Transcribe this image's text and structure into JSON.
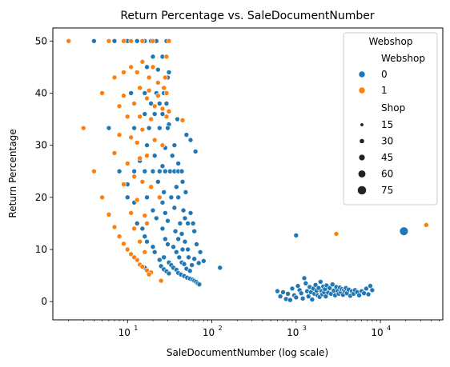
{
  "chart_data": {
    "type": "scatter",
    "title": "Return Percentage vs. SaleDocumentNumber",
    "xlabel": "SaleDocumentNumber (log scale)",
    "ylabel": "Return Percentage",
    "x_scale": "log",
    "xlim": [
      1.3,
      55000
    ],
    "ylim": [
      -3.5,
      52.5
    ],
    "x_ticks": [
      {
        "value": 10,
        "base": "10",
        "exp": "1"
      },
      {
        "value": 100,
        "base": "10",
        "exp": "2"
      },
      {
        "value": 1000,
        "base": "10",
        "exp": "3"
      },
      {
        "value": 10000,
        "base": "10",
        "exp": "4"
      }
    ],
    "y_ticks": [
      0,
      10,
      20,
      30,
      40,
      50
    ],
    "grid": false,
    "legend": {
      "placement": "top-right",
      "title": "Webshop",
      "hue_header": "Webshop",
      "size_header": "Shop",
      "hue_entries": [
        {
          "label": "0",
          "color": "#1f77b4"
        },
        {
          "label": "1",
          "color": "#ff7f0e"
        }
      ],
      "size_entries": [
        {
          "label": "15",
          "size": 15
        },
        {
          "label": "30",
          "size": 30
        },
        {
          "label": "45",
          "size": 45
        },
        {
          "label": "60",
          "size": 60
        },
        {
          "label": "75",
          "size": 75
        }
      ]
    },
    "series": [
      {
        "hue": "0",
        "color": "#1f77b4",
        "points": [
          [
            4,
            50
          ],
          [
            7,
            50
          ],
          [
            10,
            50
          ],
          [
            13,
            50
          ],
          [
            16,
            50
          ],
          [
            19,
            50
          ],
          [
            22,
            50
          ],
          [
            29,
            50
          ],
          [
            20,
            47
          ],
          [
            26,
            47
          ],
          [
            17,
            45
          ],
          [
            23,
            44.5
          ],
          [
            30,
            43
          ],
          [
            31,
            44
          ],
          [
            11,
            40
          ],
          [
            16,
            40
          ],
          [
            22,
            40
          ],
          [
            27,
            40
          ],
          [
            19,
            38
          ],
          [
            24,
            38
          ],
          [
            29,
            38
          ],
          [
            16,
            36
          ],
          [
            21,
            36
          ],
          [
            26,
            36
          ],
          [
            39,
            35
          ],
          [
            31,
            34
          ],
          [
            6,
            33.3
          ],
          [
            12,
            33.3
          ],
          [
            18,
            33.3
          ],
          [
            24,
            33.3
          ],
          [
            30,
            33.3
          ],
          [
            50,
            32
          ],
          [
            56,
            31
          ],
          [
            36,
            30
          ],
          [
            17,
            30
          ],
          [
            28,
            29.5
          ],
          [
            64,
            28.8
          ],
          [
            21,
            28
          ],
          [
            34,
            28
          ],
          [
            14,
            27
          ],
          [
            26,
            26
          ],
          [
            40,
            26.5
          ],
          [
            8,
            25
          ],
          [
            12,
            25
          ],
          [
            16,
            25
          ],
          [
            20,
            25
          ],
          [
            24,
            25
          ],
          [
            28,
            25
          ],
          [
            32,
            25
          ],
          [
            36,
            25
          ],
          [
            40,
            25
          ],
          [
            44,
            25
          ],
          [
            23,
            23
          ],
          [
            45,
            23
          ],
          [
            10,
            22.5
          ],
          [
            19,
            22
          ],
          [
            38,
            22
          ],
          [
            27,
            21
          ],
          [
            10,
            20
          ],
          [
            17,
            20
          ],
          [
            33,
            20
          ],
          [
            40,
            20
          ],
          [
            49,
            21
          ],
          [
            12,
            19
          ],
          [
            26,
            19
          ],
          [
            11,
            17
          ],
          [
            20,
            17.5
          ],
          [
            28,
            17
          ],
          [
            36,
            18
          ],
          [
            46,
            17.5
          ],
          [
            56,
            17
          ],
          [
            22,
            16
          ],
          [
            48,
            16
          ],
          [
            13,
            15
          ],
          [
            30,
            15.5
          ],
          [
            42,
            15
          ],
          [
            52,
            15
          ],
          [
            60,
            15
          ],
          [
            15,
            14
          ],
          [
            26,
            14
          ],
          [
            37,
            13.5
          ],
          [
            44,
            13
          ],
          [
            62,
            13.5
          ],
          [
            16,
            12.5
          ],
          [
            28,
            12
          ],
          [
            40,
            12
          ],
          [
            48,
            11.5
          ],
          [
            66,
            11
          ],
          [
            17,
            11.5
          ],
          [
            30,
            11
          ],
          [
            20,
            10.5
          ],
          [
            35,
            10.5
          ],
          [
            45,
            10
          ],
          [
            52,
            10
          ],
          [
            73,
            9.5
          ],
          [
            21,
            9.5
          ],
          [
            38,
            9.5
          ],
          [
            27,
            8.5
          ],
          [
            41,
            8.5
          ],
          [
            53,
            8.5
          ],
          [
            62,
            8.2
          ],
          [
            80,
            7.8
          ],
          [
            24,
            8
          ],
          [
            31,
            7.5
          ],
          [
            44,
            7.5
          ],
          [
            33,
            7
          ],
          [
            47,
            7.2
          ],
          [
            58,
            7
          ],
          [
            70,
            7.4
          ],
          [
            25,
            6.8
          ],
          [
            35,
            6.5
          ],
          [
            50,
            6.3
          ],
          [
            16,
            6.5
          ],
          [
            27,
            6.2
          ],
          [
            38,
            6.1
          ],
          [
            55,
            5.9
          ],
          [
            125,
            6.5
          ],
          [
            29,
            5.8
          ],
          [
            40,
            5.5
          ],
          [
            18,
            5.5
          ],
          [
            43,
            5.2
          ],
          [
            31,
            5.4
          ],
          [
            47,
            4.9
          ],
          [
            51,
            4.6
          ],
          [
            55,
            4.4
          ],
          [
            59,
            4.2
          ],
          [
            62,
            4.0
          ],
          [
            65,
            3.8
          ],
          [
            68,
            3.5
          ],
          [
            71,
            3.3
          ],
          [
            1000,
            12.7
          ],
          [
            600,
            2.0
          ],
          [
            650,
            1.0
          ],
          [
            700,
            1.8
          ],
          [
            760,
            0.5
          ],
          [
            800,
            1.5
          ],
          [
            850,
            0.3
          ],
          [
            900,
            2.5
          ],
          [
            950,
            1.2
          ],
          [
            1000,
            0.8
          ],
          [
            1050,
            3.0
          ],
          [
            1100,
            2.2
          ],
          [
            1150,
            1.6
          ],
          [
            1200,
            0.6
          ],
          [
            1250,
            4.5
          ],
          [
            1300,
            3.5
          ],
          [
            1350,
            2.0
          ],
          [
            1400,
            1.0
          ],
          [
            1450,
            2.8
          ],
          [
            1500,
            1.8
          ],
          [
            1550,
            0.4
          ],
          [
            1600,
            2.5
          ],
          [
            1650,
            1.5
          ],
          [
            1700,
            3.2
          ],
          [
            1750,
            2.1
          ],
          [
            1800,
            1.2
          ],
          [
            1850,
            2.6
          ],
          [
            1900,
            0.9
          ],
          [
            1950,
            3.8
          ],
          [
            2000,
            2.0
          ],
          [
            2050,
            1.4
          ],
          [
            2100,
            2.9
          ],
          [
            2150,
            1.8
          ],
          [
            2200,
            2.4
          ],
          [
            2250,
            1.0
          ],
          [
            2300,
            3.1
          ],
          [
            2400,
            1.7
          ],
          [
            2500,
            2.6
          ],
          [
            2600,
            1.5
          ],
          [
            2700,
            3.3
          ],
          [
            2800,
            2.1
          ],
          [
            2900,
            1.2
          ],
          [
            3000,
            2.8
          ],
          [
            3100,
            2.0
          ],
          [
            3200,
            1.5
          ],
          [
            3300,
            2.7
          ],
          [
            3400,
            1.8
          ],
          [
            3500,
            2.4
          ],
          [
            3600,
            1.3
          ],
          [
            3700,
            2.2
          ],
          [
            3800,
            1.9
          ],
          [
            3900,
            2.6
          ],
          [
            4000,
            1.6
          ],
          [
            4200,
            2.3
          ],
          [
            4400,
            1.1
          ],
          [
            4600,
            2.0
          ],
          [
            4800,
            1.5
          ],
          [
            5000,
            2.2
          ],
          [
            5300,
            1.8
          ],
          [
            5600,
            1.2
          ],
          [
            6000,
            2.0
          ],
          [
            6400,
            1.6
          ],
          [
            6800,
            2.5
          ],
          [
            7200,
            1.4
          ],
          [
            7600,
            3.0
          ],
          [
            8000,
            2.2
          ]
        ],
        "large_points": [
          [
            19000,
            13.5
          ]
        ]
      },
      {
        "hue": "1",
        "color": "#ff7f0e",
        "points": [
          [
            2,
            50
          ],
          [
            6,
            50
          ],
          [
            9,
            50
          ],
          [
            11,
            50
          ],
          [
            15,
            50
          ],
          [
            20,
            50
          ],
          [
            31,
            50
          ],
          [
            29,
            47
          ],
          [
            15,
            46
          ],
          [
            20,
            45
          ],
          [
            11,
            45
          ],
          [
            13,
            44
          ],
          [
            9,
            44
          ],
          [
            7,
            43
          ],
          [
            18,
            43
          ],
          [
            28,
            43
          ],
          [
            23,
            42
          ],
          [
            14,
            41
          ],
          [
            27,
            41
          ],
          [
            5,
            40
          ],
          [
            18,
            40.5
          ],
          [
            9,
            39.5
          ],
          [
            12,
            38
          ],
          [
            29,
            40
          ],
          [
            17,
            39
          ],
          [
            23,
            39.5
          ],
          [
            8,
            37.5
          ],
          [
            21,
            37.5
          ],
          [
            26,
            37
          ],
          [
            31,
            36.5
          ],
          [
            14,
            35.5
          ],
          [
            29,
            35.5
          ],
          [
            10,
            35.5
          ],
          [
            19,
            35
          ],
          [
            45,
            34.8
          ],
          [
            3,
            33.3
          ],
          [
            15,
            33
          ],
          [
            8,
            32
          ],
          [
            11,
            31.5
          ],
          [
            21,
            31
          ],
          [
            13,
            30.5
          ],
          [
            26,
            30
          ],
          [
            7,
            28.5
          ],
          [
            17,
            28
          ],
          [
            14,
            27.5
          ],
          [
            10,
            26.5
          ],
          [
            4,
            25
          ],
          [
            12,
            24
          ],
          [
            15,
            23
          ],
          [
            9,
            22.5
          ],
          [
            19,
            22
          ],
          [
            5,
            20
          ],
          [
            24,
            20
          ],
          [
            13,
            19.5
          ],
          [
            6,
            16.7
          ],
          [
            16,
            16.5
          ],
          [
            11,
            17
          ],
          [
            17,
            15
          ],
          [
            7,
            14.3
          ],
          [
            12,
            14
          ],
          [
            8,
            12.5
          ],
          [
            9,
            11.1
          ],
          [
            14,
            11.5
          ],
          [
            10,
            10
          ],
          [
            11,
            9.1
          ],
          [
            13,
            8
          ],
          [
            16,
            9.5
          ],
          [
            12,
            8.5
          ],
          [
            14,
            7.1
          ],
          [
            15,
            6.7
          ],
          [
            17,
            6
          ],
          [
            19,
            5.6
          ],
          [
            18,
            5.2
          ],
          [
            25,
            4.0
          ],
          [
            3000,
            13
          ],
          [
            35000,
            14.7
          ]
        ],
        "large_points": []
      }
    ]
  }
}
